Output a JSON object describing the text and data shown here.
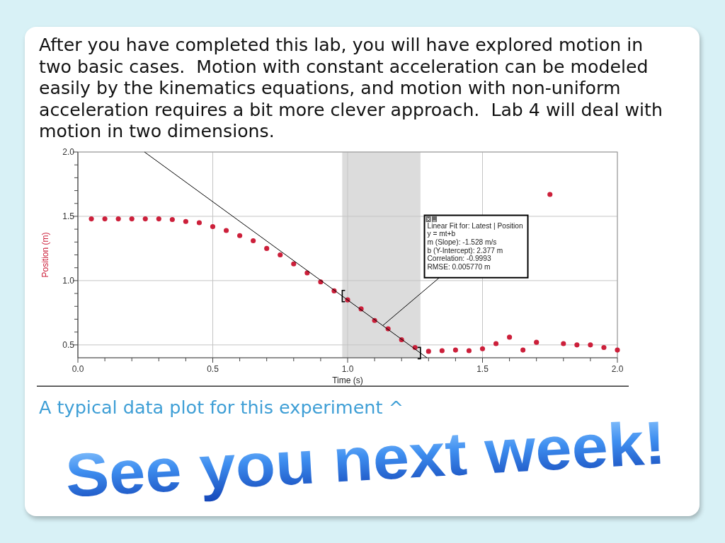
{
  "chart_data": {
    "type": "scatter",
    "title": "After you have completed this lab, you will have explored motion in two basic cases.  Motion with constant acceleration can be modeled easily by the kinematics equations, and motion with non-uniform acceleration requires a bit more clever approach.  Lab 4 will deal with motion in two dimensions.",
    "xlabel": "Time (s)",
    "ylabel": "Position (m)",
    "x": [
      0.05,
      0.1,
      0.15,
      0.2,
      0.25,
      0.3,
      0.35,
      0.4,
      0.45,
      0.5,
      0.55,
      0.6,
      0.65,
      0.7,
      0.75,
      0.8,
      0.85,
      0.9,
      0.95,
      1.0,
      1.05,
      1.1,
      1.15,
      1.2,
      1.25,
      1.3,
      1.35,
      1.4,
      1.45,
      1.5,
      1.55,
      1.6,
      1.65,
      1.7,
      1.75,
      1.8,
      1.85,
      1.9,
      1.95,
      2.0
    ],
    "xlim": [
      0,
      2
    ],
    "ylim": [
      0.4,
      2.0
    ],
    "xticks": [
      {
        "value": 0,
        "label": "0.0"
      },
      {
        "value": 0.1,
        "label": null
      },
      {
        "value": 0.2,
        "label": null
      },
      {
        "value": 0.3,
        "label": null
      },
      {
        "value": 0.4,
        "label": null
      },
      0.5,
      {
        "value": 0.6,
        "label": null
      },
      {
        "value": 0.7,
        "label": null
      },
      {
        "value": 0.8,
        "label": null
      },
      {
        "value": 0.9,
        "label": null
      },
      {
        "value": 1,
        "label": "1.0"
      },
      {
        "value": 1.1,
        "label": null
      },
      {
        "value": 1.2,
        "label": null
      },
      {
        "value": 1.3,
        "label": null
      },
      {
        "value": 1.4,
        "label": null
      },
      1.5,
      {
        "value": 1.6,
        "label": null
      },
      {
        "value": 1.7,
        "label": null
      },
      {
        "value": 1.8,
        "label": null
      },
      {
        "value": 1.9,
        "label": null
      },
      {
        "value": 2,
        "label": "2.0"
      }
    ],
    "yticks": [
      0.5,
      {
        "value": 0.6,
        "label": null
      },
      {
        "value": 0.7,
        "label": null
      },
      {
        "value": 0.8,
        "label": null
      },
      {
        "value": 0.9,
        "label": null
      },
      {
        "value": 1,
        "label": "1.0"
      },
      {
        "value": 1.1,
        "label": null
      },
      {
        "value": 1.2,
        "label": null
      },
      {
        "value": 1.3,
        "label": null
      },
      {
        "value": 1.4,
        "label": null
      },
      1.5,
      {
        "value": 1.6,
        "label": null
      },
      {
        "value": 1.7,
        "label": null
      },
      {
        "value": 1.8,
        "label": null
      },
      {
        "value": 1.9,
        "label": null
      },
      {
        "value": 2,
        "label": "2.0"
      }
    ],
    "grid": true,
    "series": [
      {
        "type": "scatter",
        "color": "#cc1f3a",
        "marker": "circle",
        "values": [
          1.48,
          1.48,
          1.48,
          1.48,
          1.48,
          1.48,
          1.475,
          1.46,
          1.45,
          1.42,
          1.39,
          1.35,
          1.31,
          1.25,
          1.2,
          1.13,
          1.06,
          0.99,
          0.92,
          0.85,
          0.78,
          0.69,
          0.625,
          0.54,
          0.48,
          0.45,
          0.455,
          0.46,
          0.455,
          0.47,
          0.51,
          0.56,
          0.46,
          0.52,
          1.67,
          0.51,
          0.5,
          0.5,
          0.48,
          0.46
        ]
      },
      {
        "type": "line",
        "color": "#000000",
        "x": [
          0.247,
          1.294
        ],
        "values": [
          2.0,
          0.4
        ]
      }
    ],
    "bands": [
      {
        "axis": "x",
        "from": 0.98,
        "to": 1.27,
        "color": "#dcdcdc"
      }
    ],
    "annotations": [
      {
        "text": "Linear Fit for: Latest | Position\ny = mt+b\nm (Slope): -1.528 m/s\nb (Y-Intercept): 2.377 m\nCorrelation: -0.9993\nRMSE: 0.005770 m",
        "x": 1.13,
        "y": 0.65
      },
      "A typical data plot for this experiment ^",
      "See you next week!"
    ]
  }
}
